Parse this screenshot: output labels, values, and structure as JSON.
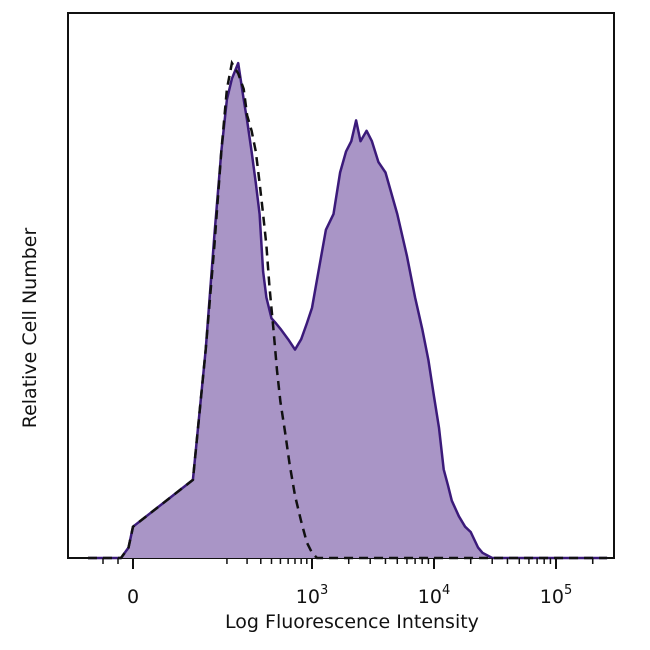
{
  "chart_data": {
    "type": "area",
    "title": "",
    "xlabel": "Log Fluorescence Intensity",
    "ylabel": "Relative Cell Number",
    "x_scale": "biexponential",
    "x_ticks": [
      {
        "value": 0,
        "base": "0",
        "exp": ""
      },
      {
        "value": 1000,
        "base": "10",
        "exp": "3"
      },
      {
        "value": 10000,
        "base": "10",
        "exp": "4"
      },
      {
        "value": 100000,
        "base": "10",
        "exp": "5"
      }
    ],
    "xlim": [
      -300,
      262144
    ],
    "ylim": [
      0,
      100
    ],
    "grid": false,
    "legend": "none",
    "series": [
      {
        "style": "filled",
        "fill": "#a995c6",
        "stroke": "#3b1a7a",
        "x": [
          -300,
          -150,
          -80,
          -30,
          0,
          20,
          40,
          60,
          80,
          100,
          120,
          150,
          180,
          200,
          230,
          260,
          290,
          320,
          350,
          400,
          450,
          500,
          600,
          700,
          800,
          900,
          1000,
          1150,
          1300,
          1500,
          1700,
          1900,
          2100,
          2300,
          2500,
          2800,
          3100,
          3500,
          4000,
          5000,
          6000,
          7000,
          8000,
          9000,
          10000,
          11000,
          12000,
          13000,
          14000,
          16000,
          18000,
          20000,
          23000,
          25000,
          30000,
          50000,
          100000,
          262144
        ],
        "y": [
          0,
          0,
          0,
          2,
          6,
          15,
          40,
          62,
          78,
          88,
          92,
          95,
          88,
          84,
          78,
          72,
          66,
          55,
          50,
          46,
          45,
          44,
          42,
          40,
          42,
          45,
          48,
          56,
          63,
          66,
          74,
          78,
          80,
          84,
          80,
          82,
          80,
          76,
          74,
          66,
          58,
          50,
          44,
          38,
          31,
          25,
          17,
          14,
          11,
          8,
          6,
          5,
          2,
          1,
          0,
          0,
          0,
          0
        ]
      },
      {
        "style": "dashed",
        "stroke": "#111111",
        "x": [
          -300,
          -150,
          -80,
          -30,
          0,
          20,
          40,
          60,
          80,
          100,
          120,
          150,
          180,
          200,
          230,
          260,
          290,
          320,
          350,
          380,
          420,
          460,
          500,
          560,
          620,
          700,
          800,
          900,
          1000,
          1100,
          1300,
          2000,
          10000,
          262144
        ],
        "y": [
          0,
          0,
          0,
          2,
          6,
          15,
          40,
          60,
          78,
          90,
          95,
          93,
          90,
          85,
          82,
          78,
          72,
          66,
          60,
          52,
          44,
          36,
          30,
          24,
          18,
          12,
          7,
          3,
          1,
          0,
          0,
          0,
          0,
          0
        ]
      }
    ]
  }
}
